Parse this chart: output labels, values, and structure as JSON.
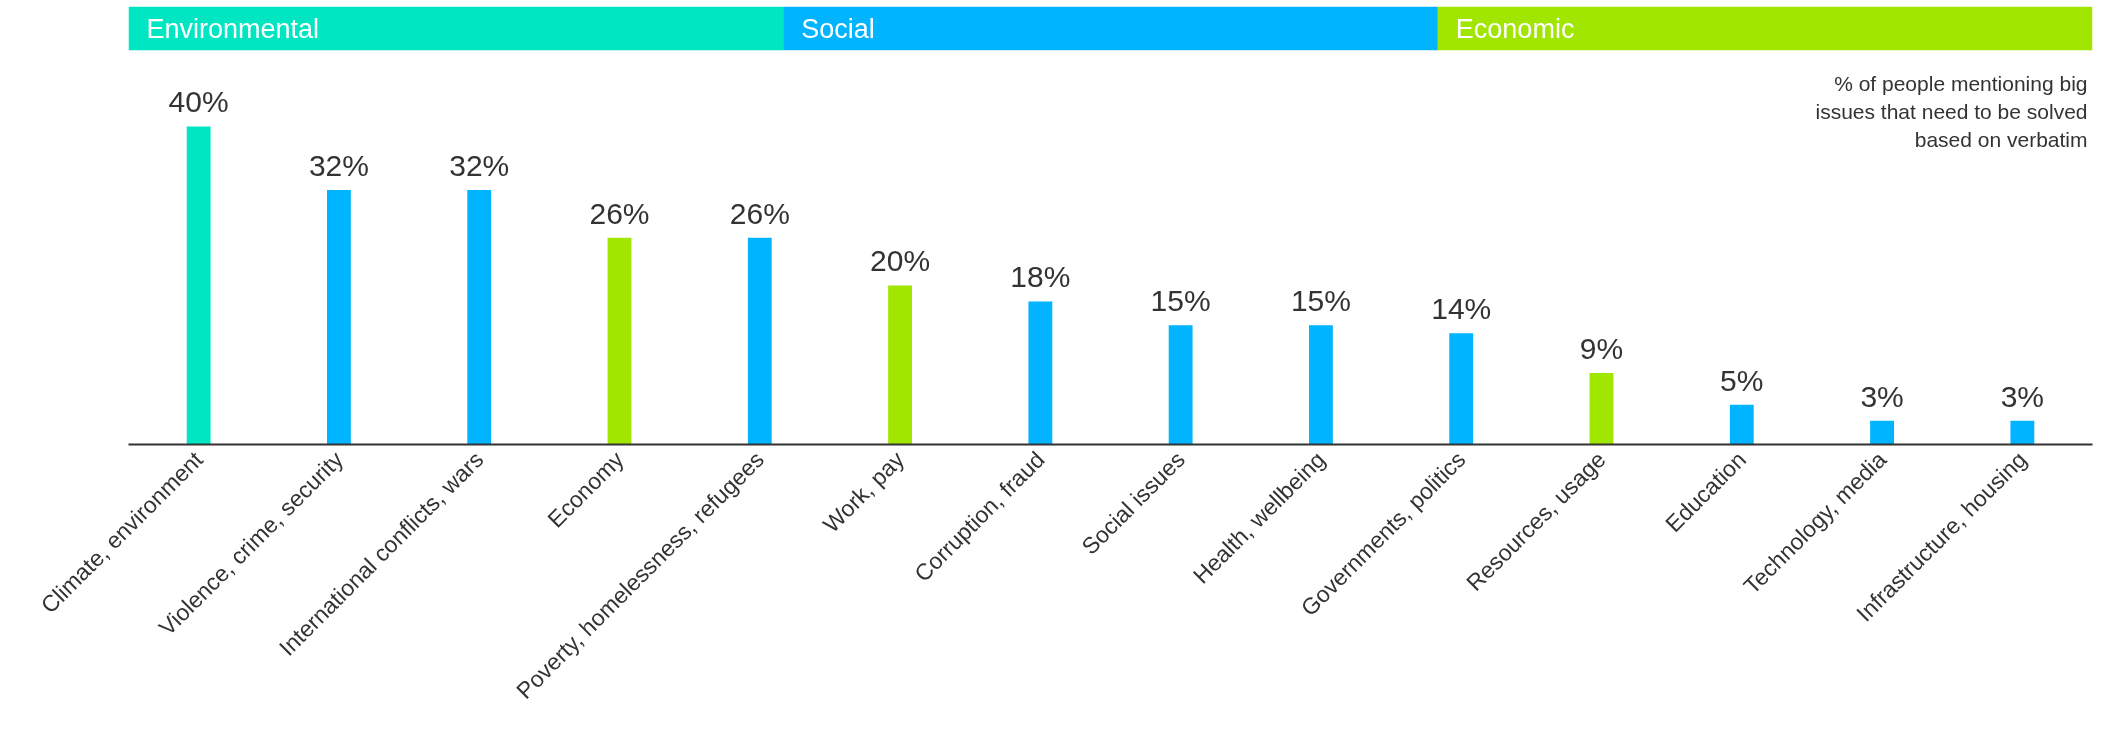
{
  "chart_data": {
    "type": "bar",
    "categories": [
      "Climate, environment",
      "Violence, crime, security",
      "International conflicts, wars",
      "Economy",
      "Poverty, homelessness, refugees",
      "Work, pay",
      "Corruption, fraud",
      "Social issues",
      "Health, wellbeing",
      "Governments, politics",
      "Resources, usage",
      "Education",
      "Technology, media",
      "Infrastructure, housing"
    ],
    "series": [
      {
        "name": "Environmental",
        "color": "#00e6c3",
        "values": [
          40,
          null,
          null,
          null,
          null,
          null,
          null,
          null,
          null,
          null,
          null,
          null,
          null,
          null
        ],
        "value_labels": [
          "40%",
          null,
          null,
          null,
          null,
          null,
          null,
          null,
          null,
          null,
          null,
          null,
          null,
          null
        ]
      },
      {
        "name": "Social",
        "color": "#00b4ff",
        "values": [
          null,
          32,
          32,
          null,
          26,
          null,
          18,
          15,
          15,
          14,
          null,
          5,
          3,
          3
        ],
        "value_labels": [
          null,
          "32%",
          "32%",
          null,
          "26%",
          null,
          "18%",
          "15%",
          "15%",
          "14%",
          null,
          "5%",
          "3%",
          "3%"
        ]
      },
      {
        "name": "Economic",
        "color": "#a0e600",
        "values": [
          null,
          null,
          null,
          26,
          null,
          20,
          null,
          null,
          null,
          null,
          9,
          null,
          null,
          null
        ],
        "value_labels": [
          null,
          null,
          null,
          "26%",
          null,
          "20%",
          null,
          null,
          null,
          null,
          "9%",
          null,
          null,
          null
        ]
      }
    ],
    "legend": "top",
    "annotations": [
      "% of people mentioning big issues that need to be solved based on verbatim"
    ]
  }
}
